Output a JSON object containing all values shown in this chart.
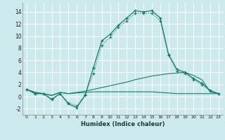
{
  "xlabel": "Humidex (Indice chaleur)",
  "background_color": "#cce9ed",
  "grid_color": "#ffffff",
  "line_color": "#1a7a6e",
  "x_ticks": [
    0,
    1,
    2,
    3,
    4,
    5,
    6,
    7,
    8,
    9,
    10,
    11,
    12,
    13,
    14,
    15,
    16,
    17,
    18,
    19,
    20,
    21,
    22,
    23
  ],
  "xlim": [
    -0.5,
    23.5
  ],
  "ylim": [
    -3,
    15.5
  ],
  "y_ticks": [
    -2,
    0,
    2,
    4,
    6,
    8,
    10,
    12,
    14
  ],
  "line1_x": [
    0,
    1,
    2,
    3,
    4,
    5,
    6,
    7,
    8,
    9,
    10,
    11,
    12,
    13,
    14,
    15,
    16,
    17,
    18,
    19,
    20,
    21,
    22,
    23
  ],
  "line1_y": [
    1.2,
    0.5,
    0.5,
    -0.5,
    0.5,
    -1.2,
    -1.8,
    0.2,
    4.8,
    9.2,
    10.3,
    11.8,
    13.0,
    14.2,
    14.0,
    14.2,
    13.0,
    7.0,
    4.5,
    4.0,
    3.0,
    2.2,
    1.0,
    0.5
  ],
  "line2_x": [
    0,
    1,
    2,
    3,
    4,
    5,
    6,
    7,
    8,
    9,
    10,
    11,
    12,
    13,
    14,
    15,
    16,
    17,
    18,
    19,
    20,
    21,
    22,
    23
  ],
  "line2_y": [
    1.2,
    0.5,
    0.5,
    -0.3,
    0.5,
    -1.0,
    -1.5,
    0.3,
    3.8,
    8.5,
    9.8,
    11.5,
    12.5,
    13.8,
    13.8,
    13.8,
    12.5,
    6.8,
    4.2,
    3.8,
    2.8,
    2.0,
    0.9,
    0.5
  ],
  "line3_x": [
    0,
    1,
    2,
    3,
    4,
    5,
    6,
    7,
    8,
    9,
    10,
    11,
    12,
    13,
    14,
    15,
    16,
    17,
    18,
    19,
    20,
    21,
    22,
    23
  ],
  "line3_y": [
    1.2,
    0.7,
    0.5,
    0.2,
    0.7,
    0.5,
    0.7,
    0.9,
    1.2,
    1.5,
    1.8,
    2.1,
    2.4,
    2.8,
    3.1,
    3.4,
    3.6,
    3.8,
    3.9,
    4.0,
    3.5,
    2.8,
    0.8,
    0.5
  ],
  "line4_x": [
    0,
    1,
    2,
    3,
    4,
    5,
    6,
    7,
    8,
    9,
    10,
    11,
    12,
    13,
    14,
    15,
    16,
    17,
    18,
    19,
    20,
    21,
    22,
    23
  ],
  "line4_y": [
    1.2,
    0.7,
    0.5,
    0.2,
    0.7,
    0.5,
    0.6,
    0.7,
    0.8,
    0.8,
    0.8,
    0.8,
    0.8,
    0.8,
    0.8,
    0.8,
    0.7,
    0.6,
    0.5,
    0.5,
    0.5,
    0.5,
    0.5,
    0.5
  ]
}
